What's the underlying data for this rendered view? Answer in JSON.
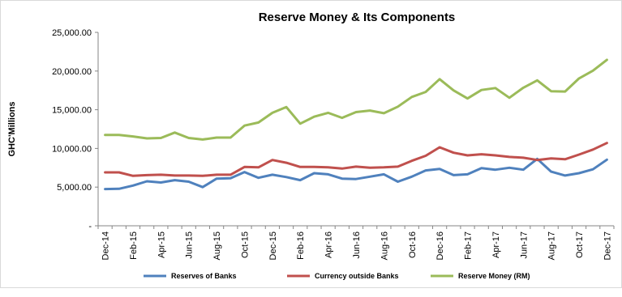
{
  "chart_data": {
    "type": "line",
    "title": "Reserve Money & Its Components",
    "ylabel": "GHC'Millions",
    "xlabel": "",
    "ylim": [
      0,
      25000
    ],
    "yticks": [
      "-",
      "5,000.00",
      "10,000.00",
      "15,000.00",
      "20,000.00",
      "25,000.00"
    ],
    "ytick_values": [
      0,
      5000,
      10000,
      15000,
      20000,
      25000
    ],
    "grid": false,
    "legend_position": "bottom",
    "x": [
      "Dec-14",
      "Jan-15",
      "Feb-15",
      "Mar-15",
      "Apr-15",
      "May-15",
      "Jun-15",
      "Jul-15",
      "Aug-15",
      "Sep-15",
      "Oct-15",
      "Nov-15",
      "Dec-15",
      "Jan-16",
      "Feb-16",
      "Mar-16",
      "Apr-16",
      "May-16",
      "Jun-16",
      "Jul-16",
      "Aug-16",
      "Sep-16",
      "Oct-16",
      "Nov-16",
      "Dec-16",
      "Jan-17",
      "Feb-17",
      "Mar-17",
      "Apr-17",
      "May-17",
      "Jun-17",
      "Jul-17",
      "Aug-17",
      "Sep-17",
      "Oct-17",
      "Nov-17",
      "Dec-17"
    ],
    "xtick_labels": [
      "Dec-14",
      "Feb-15",
      "Apr-15",
      "Jun-15",
      "Aug-15",
      "Oct-15",
      "Dec-15",
      "Feb-16",
      "Apr-16",
      "Jun-16",
      "Aug-16",
      "Oct-16",
      "Dec-16",
      "Feb-17",
      "Apr-17",
      "Jun-17",
      "Aug-17",
      "Oct-17",
      "Dec-17"
    ],
    "series": [
      {
        "name": "Reserves of Banks",
        "color": "#4f81bd",
        "values": [
          4750,
          4780,
          5200,
          5750,
          5600,
          5900,
          5700,
          5000,
          6100,
          6150,
          6950,
          6200,
          6600,
          6300,
          5900,
          6800,
          6650,
          6100,
          6050,
          6350,
          6650,
          5700,
          6350,
          7150,
          7350,
          6550,
          6650,
          7450,
          7250,
          7500,
          7250,
          8650,
          7000,
          6500,
          6800,
          7300,
          8550
        ]
      },
      {
        "name": "Currency outside Banks",
        "color": "#c0504d",
        "values": [
          6900,
          6900,
          6450,
          6550,
          6600,
          6500,
          6500,
          6450,
          6600,
          6600,
          7600,
          7550,
          8500,
          8150,
          7600,
          7600,
          7550,
          7400,
          7650,
          7500,
          7550,
          7650,
          8400,
          9050,
          10150,
          9450,
          9100,
          9250,
          9100,
          8900,
          8800,
          8500,
          8700,
          8600,
          9200,
          9850,
          10700
        ]
      },
      {
        "name": "Reserve Money (RM)",
        "color": "#9bbb59",
        "values": [
          11750,
          11750,
          11550,
          11300,
          11350,
          12050,
          11350,
          11150,
          11400,
          11400,
          12950,
          13350,
          14600,
          15350,
          13200,
          14100,
          14600,
          13950,
          14700,
          14900,
          14550,
          15400,
          16650,
          17300,
          18950,
          17500,
          16450,
          17550,
          17800,
          16550,
          17850,
          18800,
          17400,
          17350,
          19050,
          20050,
          21450
        ]
      }
    ]
  }
}
